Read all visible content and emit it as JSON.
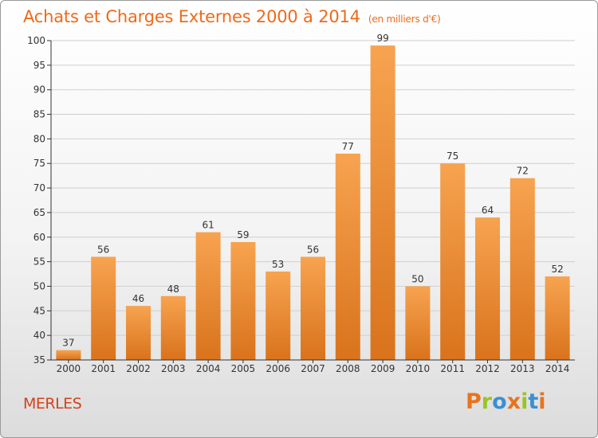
{
  "chart_data": {
    "type": "bar",
    "title": "Achats et Charges Externes 2000 à 2014",
    "subtitle": "(en milliers d'€)",
    "categories": [
      "2000",
      "2001",
      "2002",
      "2003",
      "2004",
      "2005",
      "2006",
      "2007",
      "2008",
      "2009",
      "2010",
      "2011",
      "2012",
      "2013",
      "2014"
    ],
    "values": [
      37,
      56,
      46,
      48,
      61,
      59,
      53,
      56,
      77,
      99,
      50,
      75,
      64,
      72,
      52
    ],
    "ylim": [
      35,
      100
    ],
    "yticks": [
      35,
      40,
      45,
      50,
      55,
      60,
      65,
      70,
      75,
      80,
      85,
      90,
      95,
      100
    ],
    "grid": true,
    "bar_color_top": "#f7a350",
    "bar_color_bottom": "#d9731c"
  },
  "location": "MERLES",
  "logo": {
    "letters": [
      "P",
      "r",
      "o",
      "x",
      "i",
      "t",
      "i"
    ],
    "colors": [
      "#e8731d",
      "#9ac425",
      "#3b8fd4",
      "#e8731d",
      "#9ac425",
      "#3b8fd4",
      "#e8731d"
    ]
  },
  "colors": {
    "title": "#ee6a1a",
    "location": "#d0441e",
    "axis": "#333333",
    "grid": "#cfcfcf"
  }
}
